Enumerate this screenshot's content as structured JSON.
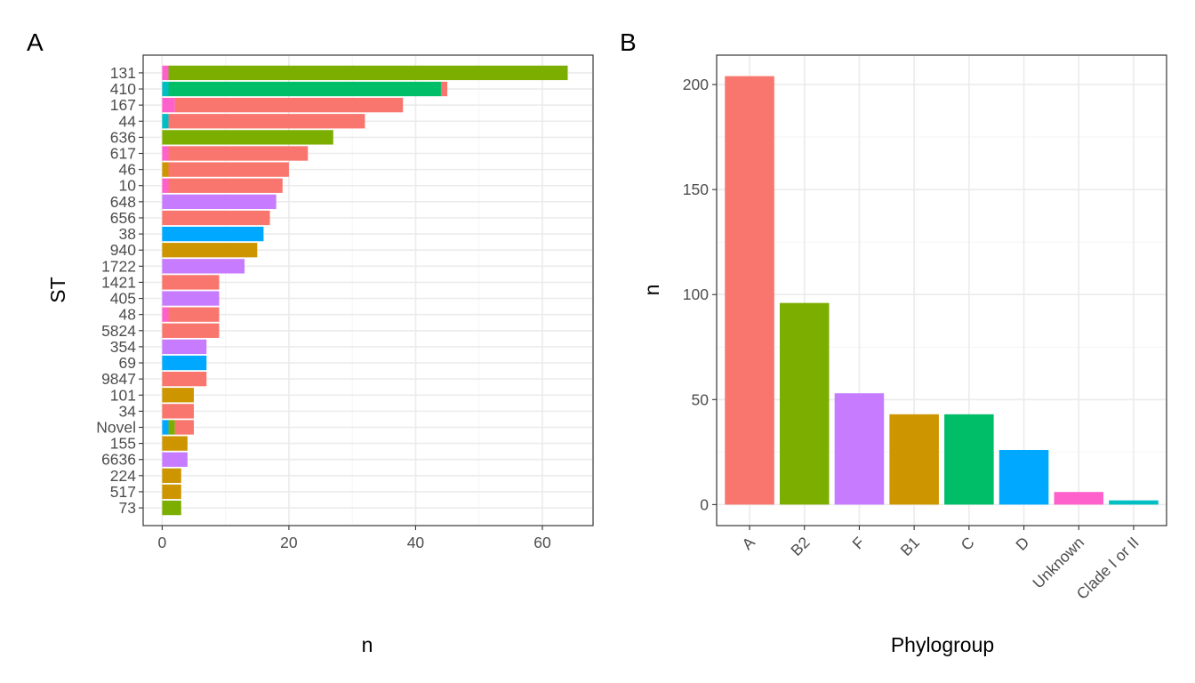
{
  "colors": {
    "A": "#F8766D",
    "B2": "#7CAE00",
    "F": "#C77CFF",
    "B1": "#CD9600",
    "C": "#00BE67",
    "D": "#00A9FF",
    "Unknown": "#FF61CC",
    "Clade I or II": "#00BFC4"
  },
  "chart_data": [
    {
      "type": "bar",
      "orientation": "horizontal",
      "stacked": true,
      "panel_tag": "A",
      "xlabel": "n",
      "ylabel": "ST",
      "xlim": [
        -3,
        68
      ],
      "xticks": [
        0,
        20,
        40,
        60
      ],
      "grid": true,
      "categories": [
        "131",
        "410",
        "167",
        "44",
        "636",
        "617",
        "46",
        "10",
        "648",
        "656",
        "38",
        "940",
        "1722",
        "1421",
        "405",
        "48",
        "5824",
        "354",
        "69",
        "9847",
        "101",
        "34",
        "Novel",
        "155",
        "6636",
        "224",
        "517",
        "73"
      ],
      "segments": [
        [
          {
            "group": "Unknown",
            "value": 1
          },
          {
            "group": "B2",
            "value": 63
          }
        ],
        [
          {
            "group": "Clade I or II",
            "value": 1
          },
          {
            "group": "C",
            "value": 43
          },
          {
            "group": "A",
            "value": 1
          }
        ],
        [
          {
            "group": "Unknown",
            "value": 2
          },
          {
            "group": "A",
            "value": 36
          }
        ],
        [
          {
            "group": "Clade I or II",
            "value": 1
          },
          {
            "group": "A",
            "value": 31
          }
        ],
        [
          {
            "group": "B2",
            "value": 27
          }
        ],
        [
          {
            "group": "Unknown",
            "value": 1
          },
          {
            "group": "A",
            "value": 22
          }
        ],
        [
          {
            "group": "B1",
            "value": 1
          },
          {
            "group": "A",
            "value": 19
          }
        ],
        [
          {
            "group": "Unknown",
            "value": 1
          },
          {
            "group": "A",
            "value": 18
          }
        ],
        [
          {
            "group": "F",
            "value": 18
          }
        ],
        [
          {
            "group": "A",
            "value": 17
          }
        ],
        [
          {
            "group": "D",
            "value": 16
          }
        ],
        [
          {
            "group": "B1",
            "value": 15
          }
        ],
        [
          {
            "group": "F",
            "value": 13
          }
        ],
        [
          {
            "group": "A",
            "value": 9
          }
        ],
        [
          {
            "group": "F",
            "value": 9
          }
        ],
        [
          {
            "group": "Unknown",
            "value": 1
          },
          {
            "group": "A",
            "value": 8
          }
        ],
        [
          {
            "group": "A",
            "value": 9
          }
        ],
        [
          {
            "group": "F",
            "value": 7
          }
        ],
        [
          {
            "group": "D",
            "value": 7
          }
        ],
        [
          {
            "group": "A",
            "value": 7
          }
        ],
        [
          {
            "group": "B1",
            "value": 5
          }
        ],
        [
          {
            "group": "A",
            "value": 5
          }
        ],
        [
          {
            "group": "D",
            "value": 1
          },
          {
            "group": "B2",
            "value": 1
          },
          {
            "group": "A",
            "value": 3
          }
        ],
        [
          {
            "group": "B1",
            "value": 4
          }
        ],
        [
          {
            "group": "F",
            "value": 4
          }
        ],
        [
          {
            "group": "B1",
            "value": 3
          }
        ],
        [
          {
            "group": "B1",
            "value": 3
          }
        ],
        [
          {
            "group": "B2",
            "value": 3
          }
        ]
      ]
    },
    {
      "type": "bar",
      "orientation": "vertical",
      "panel_tag": "B",
      "xlabel": "Phylogroup",
      "ylabel": "n",
      "ylim": [
        -10,
        214
      ],
      "yticks": [
        0,
        50,
        100,
        150,
        200
      ],
      "grid": true,
      "categories": [
        "A",
        "B2",
        "F",
        "B1",
        "C",
        "D",
        "Unknown",
        "Clade I or II"
      ],
      "values": [
        204,
        96,
        53,
        43,
        43,
        26,
        6,
        2
      ]
    }
  ]
}
